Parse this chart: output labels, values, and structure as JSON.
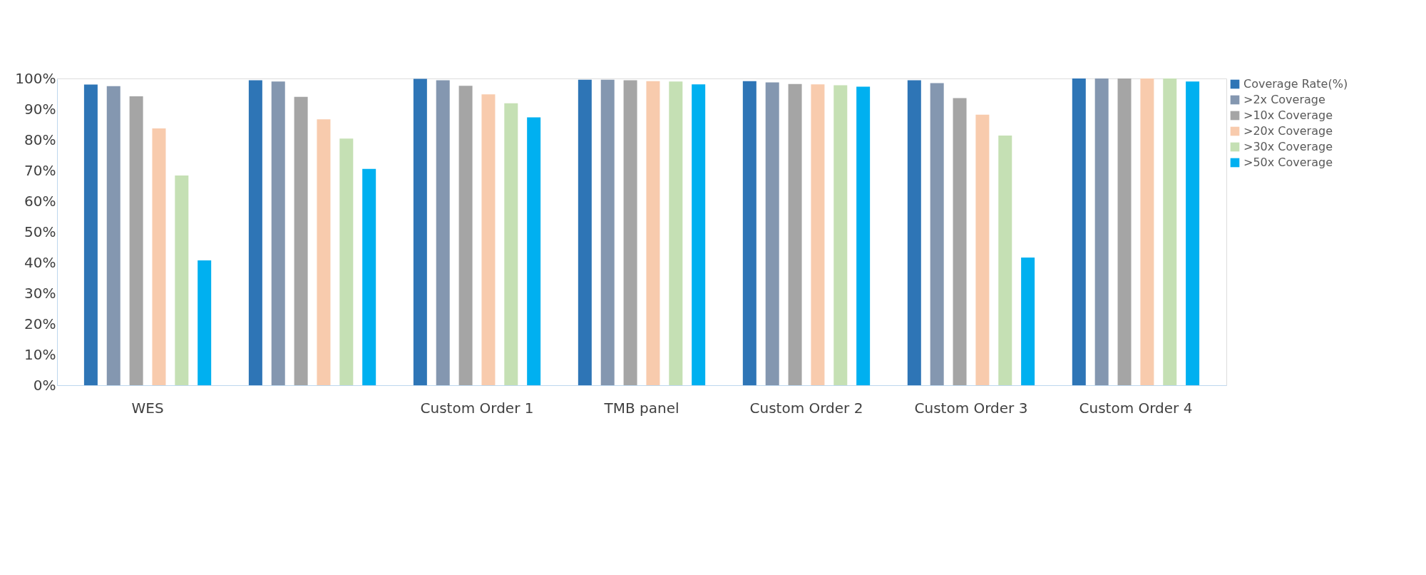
{
  "chart_data": {
    "type": "bar",
    "categories": [
      "WES",
      null,
      "Custom Order 1",
      "TMB panel",
      "Custom Order 2",
      "Custom Order 3",
      "Custom Order 4"
    ],
    "series": [
      {
        "name": "Coverage Rate(%)",
        "color": "#2e75b6",
        "values": [
          98.0,
          99.4,
          99.9,
          99.6,
          99.1,
          99.4,
          100
        ]
      },
      {
        "name": ">2x Coverage",
        "color": "#8497b0",
        "values": [
          97.5,
          99.0,
          99.4,
          99.6,
          98.7,
          98.5,
          100
        ]
      },
      {
        "name": ">10x Coverage",
        "color": "#a5a5a5",
        "values": [
          94.2,
          94.0,
          97.6,
          99.4,
          98.2,
          93.6,
          100
        ]
      },
      {
        "name": ">20x Coverage",
        "color": "#f8cbad",
        "values": [
          83.7,
          86.7,
          94.8,
          99.1,
          98.1,
          88.2,
          100
        ]
      },
      {
        "name": ">30x Coverage",
        "color": "#c5e0b4",
        "values": [
          68.4,
          80.4,
          91.9,
          99.0,
          97.8,
          81.4,
          100
        ]
      },
      {
        "name": ">50x Coverage",
        "color": "#00b0f0",
        "values": [
          40.7,
          70.5,
          87.3,
          98.1,
          97.3,
          41.6,
          99.0
        ]
      }
    ],
    "ylim": [
      0,
      100
    ],
    "yticks": [
      {
        "value": 0,
        "label": "0%"
      },
      {
        "value": 10,
        "label": "10%"
      },
      {
        "value": 20,
        "label": "20%"
      },
      {
        "value": 30,
        "label": "30%"
      },
      {
        "value": 40,
        "label": "40%"
      },
      {
        "value": 50,
        "label": "50%"
      },
      {
        "value": 60,
        "label": "60%"
      },
      {
        "value": 70,
        "label": "70%"
      },
      {
        "value": 80,
        "label": "80%"
      },
      {
        "value": 90,
        "label": "90%"
      },
      {
        "value": 100,
        "label": "100%"
      }
    ],
    "grid": false,
    "legend": "top right"
  }
}
